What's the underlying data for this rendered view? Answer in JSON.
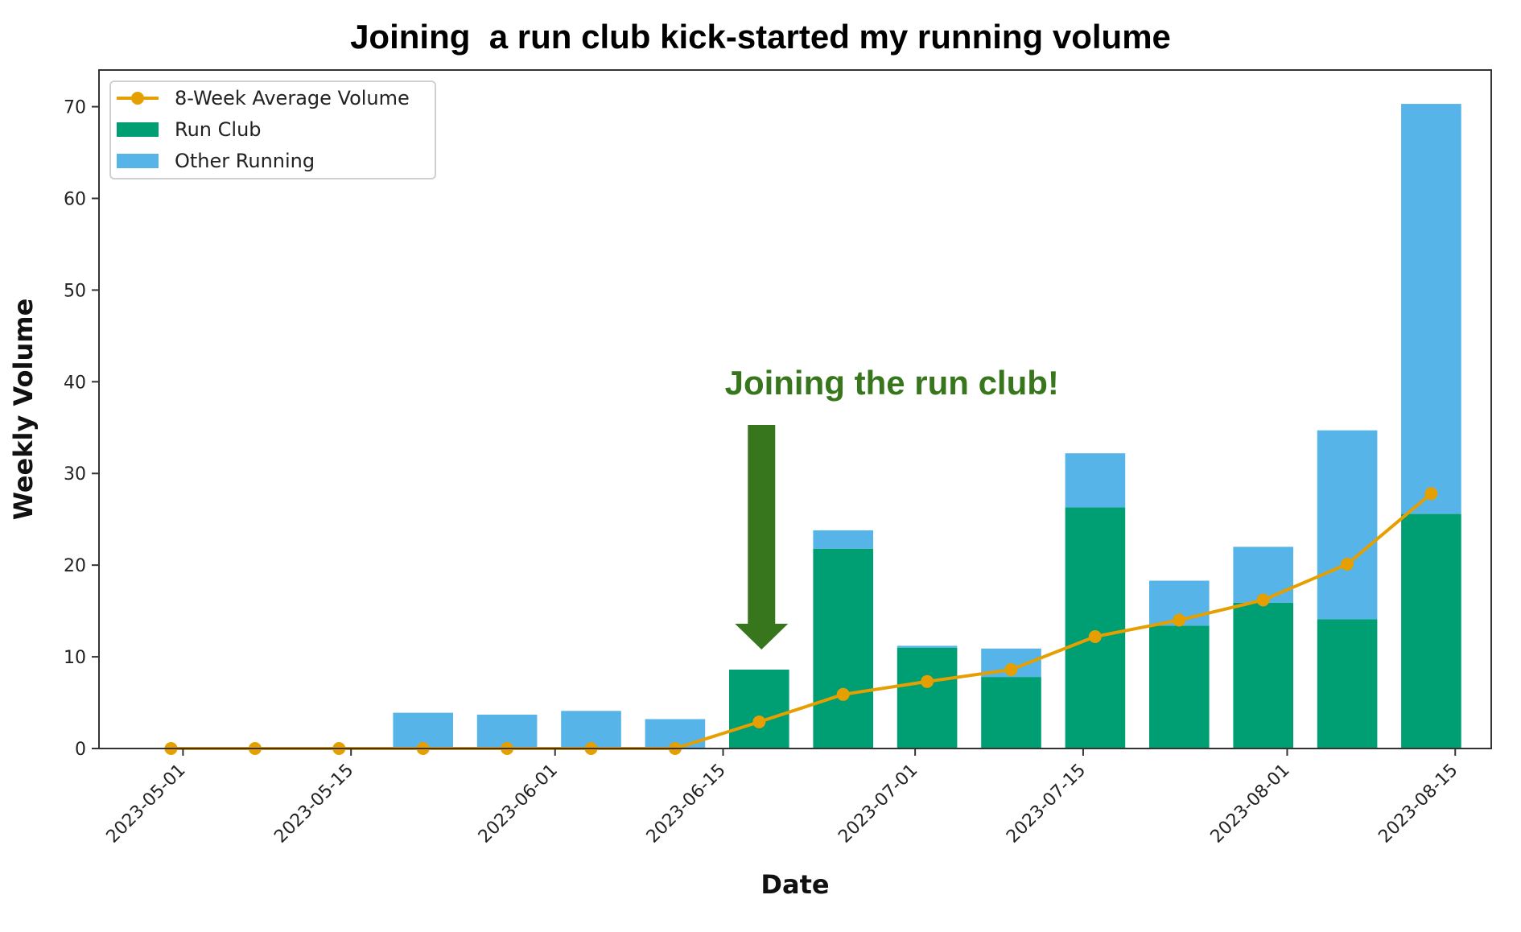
{
  "chart_data": {
    "type": "bar",
    "title": "Joining  a run club kick-started my running volume",
    "xlabel": "Date",
    "ylabel": "Weekly Volume",
    "ylim": [
      0,
      74
    ],
    "yticks": [
      0,
      10,
      20,
      30,
      40,
      50,
      60,
      70
    ],
    "xlim": [
      "2023-04-24",
      "2023-08-18"
    ],
    "xticks": [
      "2023-05-01",
      "2023-05-15",
      "2023-06-01",
      "2023-06-15",
      "2023-07-01",
      "2023-07-15",
      "2023-08-01",
      "2023-08-15"
    ],
    "stacked": true,
    "grid": false,
    "legend_position": "top-left",
    "x": [
      "2023-04-30",
      "2023-05-07",
      "2023-05-14",
      "2023-05-21",
      "2023-05-28",
      "2023-06-04",
      "2023-06-11",
      "2023-06-18",
      "2023-06-25",
      "2023-07-02",
      "2023-07-09",
      "2023-07-16",
      "2023-07-23",
      "2023-07-30",
      "2023-08-06",
      "2023-08-13"
    ],
    "series": [
      {
        "name": "Run Club",
        "kind": "bar",
        "color": "#009e73",
        "values": [
          0,
          0,
          0,
          0,
          0,
          0,
          0,
          8.6,
          21.8,
          11.0,
          7.8,
          26.3,
          13.4,
          15.9,
          14.1,
          25.6
        ]
      },
      {
        "name": "Other Running",
        "kind": "bar",
        "color": "#56b4e9",
        "values": [
          0,
          0,
          0,
          3.9,
          3.7,
          4.1,
          3.2,
          0,
          2.0,
          0.2,
          3.1,
          5.9,
          4.9,
          6.1,
          20.6,
          44.7
        ]
      },
      {
        "name": "8-Week Average Volume",
        "kind": "line",
        "color": "#e69f00",
        "values": [
          0,
          0,
          0,
          0,
          0,
          0,
          0,
          2.9,
          5.9,
          7.3,
          8.6,
          12.2,
          14.0,
          16.2,
          20.1,
          27.8
        ]
      }
    ],
    "annotation": {
      "text": "Joining the run club!",
      "color": "#38761d",
      "target": "2023-06-18"
    }
  }
}
